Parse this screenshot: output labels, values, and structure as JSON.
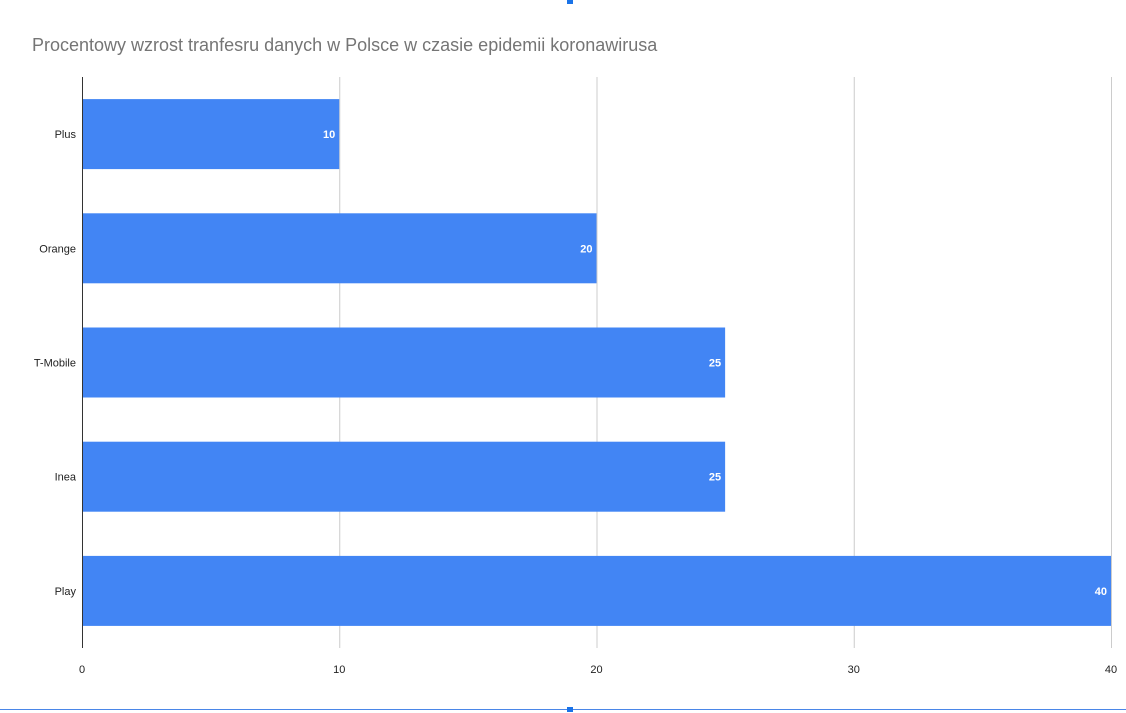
{
  "chart_data": {
    "type": "bar",
    "orientation": "horizontal",
    "title": "Procentowy wzrost tranfesru danych w Polsce w czasie epidemii koronawirusa",
    "categories": [
      "Plus",
      "Orange",
      "T-Mobile",
      "Inea",
      "Play"
    ],
    "values": [
      10,
      20,
      25,
      25,
      40
    ],
    "xlim": [
      0,
      40
    ],
    "x_ticks": [
      0,
      10,
      20,
      30,
      40
    ],
    "grid": true,
    "data_labels": true,
    "legend": "none",
    "bar_color": "#4285f4",
    "label_color": "#ffffff",
    "tick_label_color": "#222222",
    "grid_color": "#cccccc",
    "title_color": "#757575"
  }
}
